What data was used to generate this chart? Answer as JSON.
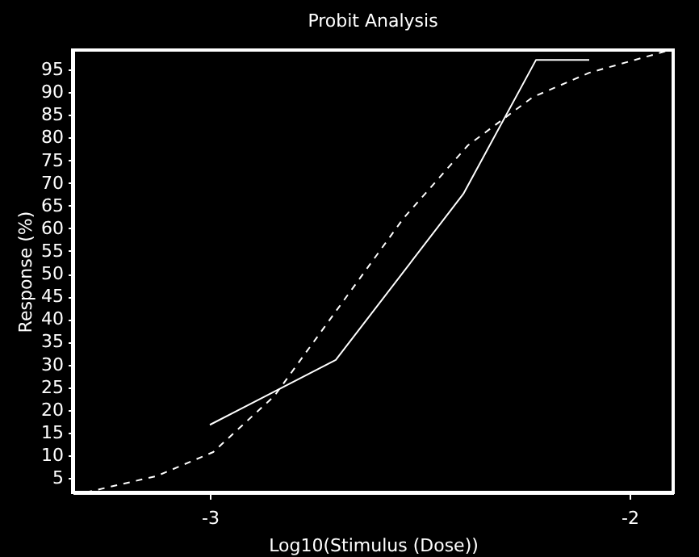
{
  "chart_data": {
    "type": "line",
    "title": "Probit Analysis",
    "xlabel": "Log10(Stimulus (Dose))",
    "ylabel": "Response (%)",
    "xlim": [
      -3.327,
      -1.896
    ],
    "xticks": [
      -3,
      -2
    ],
    "ylim": [
      1.8,
      99.3
    ],
    "yticks": [
      5,
      10,
      15,
      20,
      25,
      30,
      35,
      40,
      45,
      50,
      55,
      60,
      65,
      70,
      75,
      80,
      85,
      90,
      95
    ],
    "grid": false,
    "marker": "none",
    "series": [
      {
        "color": "#ffffff",
        "line_style": "solid",
        "x": [
          -3.0,
          -2.7,
          -2.396,
          -2.223,
          -2.096
        ],
        "values": [
          16.7,
          31,
          67.6,
          97.1,
          97.1
        ]
      },
      {
        "color": "#ffffff",
        "line_style": "dashed",
        "x": [
          -3.296,
          -3.127,
          -2.992,
          -2.846,
          -2.692,
          -2.538,
          -2.385,
          -2.231,
          -2.096,
          -1.904
        ],
        "values": [
          1.8,
          5.4,
          10.7,
          23.1,
          42.7,
          62.3,
          78.3,
          88.9,
          94.3,
          99.3
        ]
      }
    ]
  }
}
